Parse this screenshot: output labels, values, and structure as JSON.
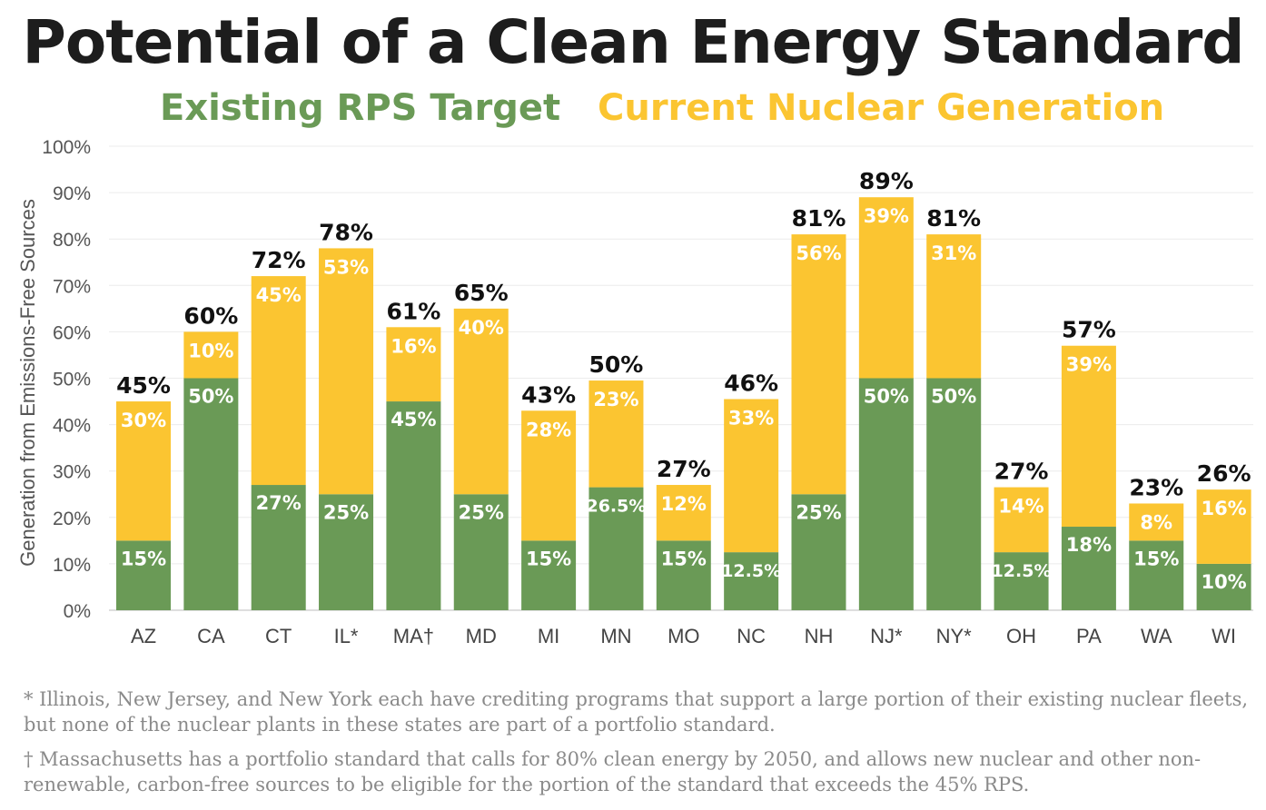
{
  "chart_data": {
    "type": "bar",
    "stacked": true,
    "title": "Potential of a Clean Energy Standard",
    "ylabel": "Generation from Emissions-Free Sources",
    "xlabel": "",
    "ylim": [
      0,
      100
    ],
    "yticks": [
      "0%",
      "10%",
      "20%",
      "30%",
      "40%",
      "50%",
      "60%",
      "70%",
      "80%",
      "90%",
      "100%"
    ],
    "grid": true,
    "legend_position": "top",
    "categories": [
      "AZ",
      "CA",
      "CT",
      "IL*",
      "MA†",
      "MD",
      "MI",
      "MN",
      "MO",
      "NC",
      "NH",
      "NJ*",
      "NY*",
      "OH",
      "PA",
      "WA",
      "WI"
    ],
    "series": [
      {
        "name": "Existing RPS Target",
        "color": "#6a9a56",
        "values": [
          15,
          50,
          27,
          25,
          45,
          25,
          15,
          26.5,
          15,
          12.5,
          25,
          50,
          50,
          12.5,
          18,
          15,
          10
        ],
        "labels": [
          "15%",
          "50%",
          "27%",
          "25%",
          "45%",
          "25%",
          "15%",
          "26.5%",
          "15%",
          "12.5%",
          "25%",
          "50%",
          "50%",
          "12.5%",
          "18%",
          "15%",
          "10%"
        ]
      },
      {
        "name": "Current Nuclear Generation",
        "color": "#fbc531",
        "values": [
          30,
          10,
          45,
          53,
          16,
          40,
          28,
          23,
          12,
          33,
          56,
          39,
          31,
          14,
          39,
          8,
          16
        ],
        "labels": [
          "30%",
          "10%",
          "45%",
          "53%",
          "16%",
          "40%",
          "28%",
          "23%",
          "12%",
          "33%",
          "56%",
          "39%",
          "31%",
          "14%",
          "39%",
          "8%",
          "16%"
        ]
      }
    ],
    "total_labels": [
      "45%",
      "60%",
      "72%",
      "78%",
      "61%",
      "65%",
      "43%",
      "50%",
      "27%",
      "46%",
      "81%",
      "89%",
      "81%",
      "27%",
      "57%",
      "23%",
      "26%"
    ]
  },
  "legend": {
    "rps_label": "Existing RPS Target",
    "rps_color": "#6a9a56",
    "nuclear_label": "Current Nuclear Generation",
    "nuclear_color": "#fbc531"
  },
  "footnotes": {
    "star": "* Illinois, New Jersey, and New York each have crediting programs that support a large portion of their existing nuclear fleets, but none of the nuclear plants in these states are part of a portfolio standard.",
    "dagger": "† Massachusetts has a portfolio standard that calls for 80% clean energy by 2050, and allows new nuclear and other non-renewable, carbon-free sources to be eligible for the portion of the standard that exceeds the 45% RPS."
  }
}
